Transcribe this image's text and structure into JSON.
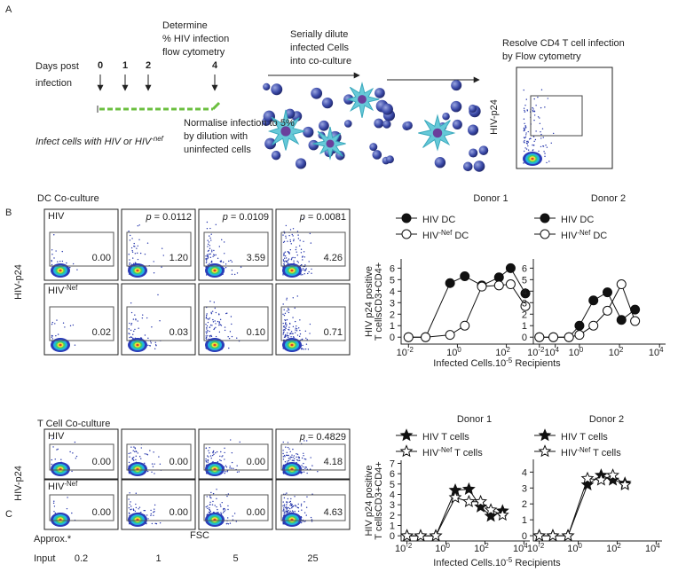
{
  "panel_a": {
    "label": "A",
    "days_label": [
      "Days post",
      "infection"
    ],
    "days": [
      "0",
      "1",
      "2",
      "4"
    ],
    "determine": [
      "Determine",
      "% HIV infection",
      "flow cytometry"
    ],
    "infect": "Infect cells with HIV or HIV-nef",
    "normalise": [
      "Normalise infection to 5%",
      "by dilution with",
      "uninfected cells"
    ],
    "serial": [
      "Serially dilute",
      "infected Cells",
      "into co-culture"
    ],
    "resolve": [
      "Resolve CD4 T cell infection",
      "by Flow cytometry"
    ],
    "y_axis": "HIV-p24"
  },
  "panel_b": {
    "label": "B",
    "title": "DC Co-culture",
    "y_axis": "HIV-p24",
    "rows": [
      {
        "name": "HIV",
        "values": [
          "0.00",
          "1.20",
          "3.59",
          "4.26"
        ]
      },
      {
        "name": "HIV-Nef",
        "values": [
          "0.02",
          "0.03",
          "0.10",
          "0.71"
        ]
      }
    ],
    "p_values": [
      "p = 0.0112",
      "p = 0.0109",
      "p = 0.0081"
    ],
    "x_label": "Infected Cells.10-5 Recipients"
  },
  "panel_c": {
    "label": "C",
    "title": "T Cell Co-culture",
    "y_axis": "HIV-p24",
    "rows": [
      {
        "name": "HIV",
        "values": [
          "0.00",
          "0.00",
          "0.00",
          "4.18"
        ]
      },
      {
        "name": "HIV-Nef",
        "values": [
          "0.00",
          "0.00",
          "0.00",
          "4.63"
        ]
      }
    ],
    "p_values": [
      "p = 0.4829"
    ],
    "x_axis": "FSC",
    "input": {
      "label": [
        "Approx.*",
        "Input"
      ],
      "values": [
        "0.2",
        "1",
        "5",
        "25"
      ]
    },
    "x_label": "Infected Cells.10-5 Recipients"
  },
  "chart_data": [
    {
      "type": "line",
      "title": "Donor 1",
      "ylabel": [
        "HIV p24 positive",
        "T cellsCD3+CD4+"
      ],
      "log_x": true,
      "x": [
        0.01,
        0.05,
        0.5,
        2,
        10,
        50,
        150,
        600
      ],
      "series": [
        {
          "name": "HIV DC",
          "color": "#111111",
          "marker": "circle",
          "marker_fill": "#111111",
          "values": [
            0,
            0,
            4.7,
            5.3,
            4.5,
            5.2,
            6.0,
            3.8
          ]
        },
        {
          "name": "HIV-Nef DC",
          "color": "#111111",
          "marker": "circle",
          "marker_fill": "#ffffff",
          "values": [
            0,
            0,
            0.2,
            1.0,
            4.4,
            4.5,
            4.6,
            2.7
          ]
        }
      ],
      "xlim": [
        0.005,
        20000
      ],
      "xticks": [
        {
          "value": 0.01,
          "label": "10-2"
        },
        {
          "value": 1,
          "label": "100"
        },
        {
          "value": 100,
          "label": "102"
        },
        {
          "value": 10000,
          "label": "104"
        }
      ],
      "ylim": [
        -0.6,
        6.8
      ],
      "yticks": [
        0,
        1,
        2,
        3,
        4,
        5,
        6
      ]
    },
    {
      "type": "line",
      "title": "Donor 2",
      "log_x": true,
      "x": [
        0.01,
        0.05,
        0.3,
        1,
        5,
        25,
        125,
        600
      ],
      "series": [
        {
          "name": "HIV DC",
          "color": "#111111",
          "marker": "circle",
          "marker_fill": "#111111",
          "values": [
            0,
            0,
            0,
            1.0,
            3.2,
            3.9,
            1.5,
            2.4
          ]
        },
        {
          "name": "HIV-Nef DC",
          "color": "#111111",
          "marker": "circle",
          "marker_fill": "#ffffff",
          "values": [
            0,
            0,
            0,
            0.2,
            1.0,
            2.3,
            4.6,
            1.4
          ]
        }
      ],
      "xlim": [
        0.005,
        20000
      ],
      "xticks": [
        {
          "value": 0.01,
          "label": "10-2"
        },
        {
          "value": 1,
          "label": "100"
        },
        {
          "value": 100,
          "label": "102"
        },
        {
          "value": 10000,
          "label": "104"
        }
      ],
      "ylim": [
        -0.6,
        6.8
      ],
      "yticks": [
        0,
        1,
        2,
        3,
        4,
        5,
        6
      ]
    },
    {
      "type": "line",
      "title": "Donor 1",
      "ylabel": [
        "HIV p24 positive",
        "T cellsCD3+CD4+"
      ],
      "log_x": true,
      "x": [
        0.01,
        0.05,
        0.3,
        3,
        15,
        60,
        200,
        800
      ],
      "series": [
        {
          "name": "HIV T cells",
          "color": "#111111",
          "marker": "star",
          "marker_fill": "#111111",
          "values": [
            0,
            0,
            0,
            4.4,
            4.5,
            2.8,
            1.9,
            2.4
          ]
        },
        {
          "name": "HIV-Nef T cells",
          "color": "#111111",
          "marker": "star",
          "marker_fill": "#ffffff",
          "values": [
            0,
            0,
            0,
            3.7,
            3.3,
            3.3,
            2.5,
            2.0
          ]
        }
      ],
      "xlim": [
        0.005,
        20000
      ],
      "xticks": [
        {
          "value": 0.01,
          "label": "10-2"
        },
        {
          "value": 1,
          "label": "100"
        },
        {
          "value": 100,
          "label": "102"
        },
        {
          "value": 10000,
          "label": "104"
        }
      ],
      "ylim": [
        -0.5,
        7.3
      ],
      "yticks": [
        0,
        1,
        2,
        3,
        4,
        5,
        6,
        7
      ]
    },
    {
      "type": "line",
      "title": "Donor 2",
      "log_x": true,
      "x": [
        0.01,
        0.05,
        0.3,
        3,
        15,
        60,
        250
      ],
      "series": [
        {
          "name": "HIV T cells",
          "color": "#111111",
          "marker": "star",
          "marker_fill": "#111111",
          "values": [
            0,
            0,
            0,
            3.2,
            3.8,
            3.5,
            3.3
          ]
        },
        {
          "name": "HIV-Nef T cells",
          "color": "#111111",
          "marker": "star",
          "marker_fill": "#ffffff",
          "values": [
            0,
            0,
            0,
            3.6,
            3.5,
            3.8,
            3.2
          ]
        }
      ],
      "xlim": [
        0.005,
        20000
      ],
      "xticks": [
        {
          "value": 0.01,
          "label": "10-2"
        },
        {
          "value": 1,
          "label": "100"
        },
        {
          "value": 100,
          "label": "102"
        },
        {
          "value": 10000,
          "label": "104"
        }
      ],
      "ylim": [
        -0.33,
        4.8
      ],
      "yticks": [
        0,
        1,
        2,
        3,
        4
      ]
    }
  ]
}
